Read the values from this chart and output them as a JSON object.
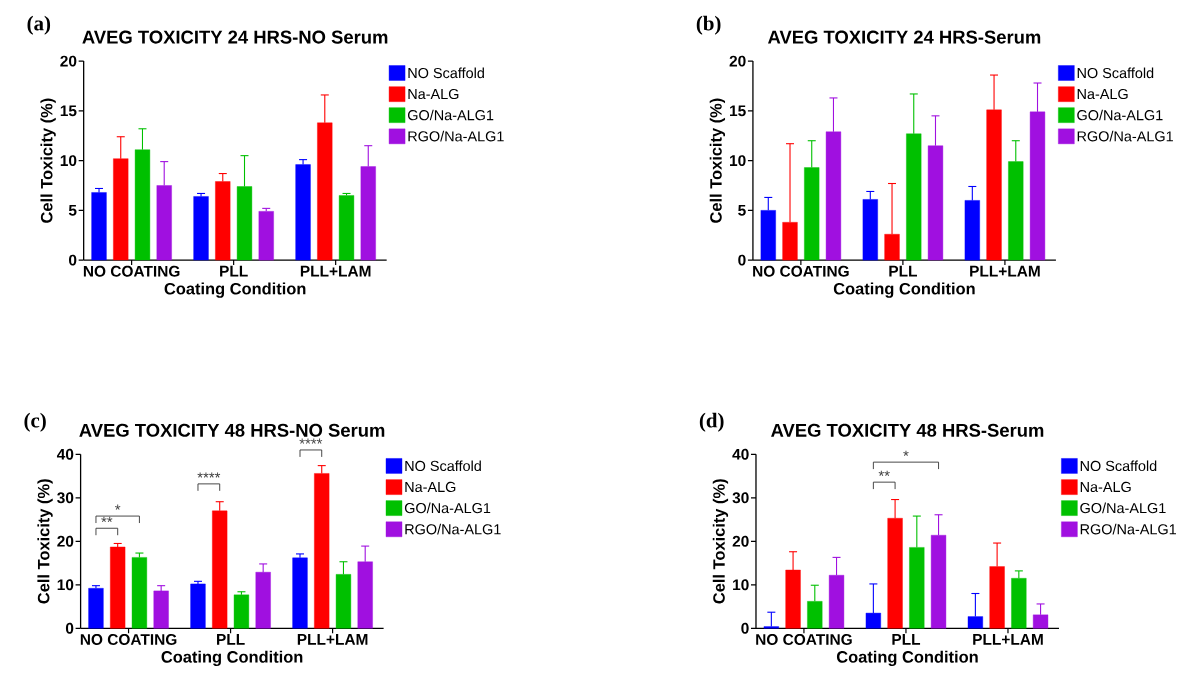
{
  "chart_data": [
    {
      "type": "bar",
      "title": "AVEG TOXICITY 24 HRS-NO Serum",
      "xlabel": "Coating Condition",
      "ylabel": "Cell Toxicity (%)",
      "categories": [
        "NO COATING",
        "PLL",
        "PLL+LAM"
      ],
      "series": [
        {
          "name": "NO Scaffold",
          "color": "#0000ff",
          "values": [
            6.8,
            6.4,
            9.6
          ],
          "errors": [
            [
              6.8,
              7.2
            ],
            [
              6.4,
              6.7
            ],
            [
              9.6,
              10.1
            ]
          ]
        },
        {
          "name": "Na-ALG",
          "color": "#ff0000",
          "values": [
            10.2,
            7.9,
            13.8
          ],
          "errors": [
            [
              10.2,
              12.4
            ],
            [
              7.9,
              8.7
            ],
            [
              13.8,
              16.6
            ]
          ]
        },
        {
          "name": "GO/Na-ALG1",
          "color": "#00c000",
          "values": [
            11.1,
            7.4,
            6.5
          ],
          "errors": [
            [
              11.1,
              13.2
            ],
            [
              7.4,
              10.5
            ],
            [
              6.5,
              6.7
            ]
          ]
        },
        {
          "name": "RGO/Na-ALG1",
          "color": "#a010e0",
          "values": [
            7.5,
            4.9,
            9.4
          ],
          "errors": [
            [
              7.5,
              9.9
            ],
            [
              4.9,
              5.2
            ],
            [
              9.4,
              11.5
            ]
          ]
        }
      ],
      "ylim": [
        0,
        20
      ],
      "yticks": [
        0,
        5,
        10,
        15,
        20
      ],
      "legend": "right",
      "annotations": [
        "(a)"
      ]
    },
    {
      "type": "bar",
      "title": "AVEG TOXICITY 24 HRS-Serum",
      "xlabel": "Coating Condition",
      "ylabel": "Cell Toxicity (%)",
      "categories": [
        "NO COATING",
        "PLL",
        "PLL+LAM"
      ],
      "series": [
        {
          "name": "NO Scaffold",
          "color": "#0000ff",
          "values": [
            5.0,
            6.1,
            6.0
          ],
          "errors": [
            [
              5.0,
              6.3
            ],
            [
              6.1,
              6.9
            ],
            [
              6.0,
              7.4
            ]
          ]
        },
        {
          "name": "Na-ALG",
          "color": "#ff0000",
          "values": [
            3.8,
            2.6,
            15.1
          ],
          "errors": [
            [
              3.8,
              11.7
            ],
            [
              2.6,
              7.7
            ],
            [
              15.1,
              18.6
            ]
          ]
        },
        {
          "name": "GO/Na-ALG1",
          "color": "#00c000",
          "values": [
            9.3,
            12.7,
            9.9
          ],
          "errors": [
            [
              9.3,
              12.0
            ],
            [
              12.7,
              16.7
            ],
            [
              9.9,
              12.0
            ]
          ]
        },
        {
          "name": "RGO/Na-ALG1",
          "color": "#a010e0",
          "values": [
            12.9,
            11.5,
            14.9
          ],
          "errors": [
            [
              12.9,
              16.3
            ],
            [
              11.5,
              14.5
            ],
            [
              14.9,
              17.8
            ]
          ]
        }
      ],
      "ylim": [
        0,
        20
      ],
      "yticks": [
        0,
        5,
        10,
        15,
        20
      ],
      "legend": "right",
      "annotations": [
        "(b)"
      ]
    },
    {
      "type": "bar",
      "title": "AVEG TOXICITY 48 HRS-NO Serum",
      "xlabel": "Coating Condition",
      "ylabel": "Cell Toxicity (%)",
      "categories": [
        "NO COATING",
        "PLL",
        "PLL+LAM"
      ],
      "series": [
        {
          "name": "NO Scaffold",
          "color": "#0000ff",
          "values": [
            9.2,
            10.2,
            16.2
          ],
          "errors": [
            [
              9.2,
              9.8
            ],
            [
              10.2,
              10.8
            ],
            [
              16.2,
              17.1
            ]
          ]
        },
        {
          "name": "Na-ALG",
          "color": "#ff0000",
          "values": [
            18.7,
            27.0,
            35.6
          ],
          "errors": [
            [
              18.7,
              19.5
            ],
            [
              27.0,
              29.1
            ],
            [
              35.6,
              37.4
            ]
          ]
        },
        {
          "name": "GO/Na-ALG1",
          "color": "#00c000",
          "values": [
            16.3,
            7.7,
            12.4
          ],
          "errors": [
            [
              16.3,
              17.3
            ],
            [
              7.7,
              8.4
            ],
            [
              12.4,
              15.3
            ]
          ]
        },
        {
          "name": "RGO/Na-ALG1",
          "color": "#a010e0",
          "values": [
            8.6,
            12.9,
            15.3
          ],
          "errors": [
            [
              8.6,
              9.8
            ],
            [
              12.9,
              14.8
            ],
            [
              15.3,
              18.9
            ]
          ]
        }
      ],
      "ylim": [
        0,
        40
      ],
      "yticks": [
        0,
        10,
        20,
        30,
        40
      ],
      "legend": "right",
      "annotations": [
        "(c)",
        "**",
        "*",
        "****",
        "****"
      ]
    },
    {
      "type": "bar",
      "title": "AVEG TOXICITY 48 HRS-Serum",
      "xlabel": "Coating Condition",
      "ylabel": "Cell Toxicity (%)",
      "categories": [
        "NO COATING",
        "PLL",
        "PLL+LAM"
      ],
      "series": [
        {
          "name": "NO Scaffold",
          "color": "#0000ff",
          "values": [
            0.4,
            3.5,
            2.7
          ],
          "errors": [
            [
              0.4,
              3.7
            ],
            [
              3.5,
              10.2
            ],
            [
              2.7,
              8.0
            ]
          ]
        },
        {
          "name": "Na-ALG",
          "color": "#ff0000",
          "values": [
            13.4,
            25.3,
            14.2
          ],
          "errors": [
            [
              13.4,
              17.6
            ],
            [
              25.3,
              29.6
            ],
            [
              14.2,
              19.6
            ]
          ]
        },
        {
          "name": "GO/Na-ALG1",
          "color": "#00c000",
          "values": [
            6.2,
            18.6,
            11.5
          ],
          "errors": [
            [
              6.2,
              9.9
            ],
            [
              18.6,
              25.8
            ],
            [
              11.5,
              13.2
            ]
          ]
        },
        {
          "name": "RGO/Na-ALG1",
          "color": "#a010e0",
          "values": [
            12.2,
            21.4,
            3.1
          ],
          "errors": [
            [
              12.2,
              16.3
            ],
            [
              21.4,
              26.1
            ],
            [
              3.1,
              5.6
            ]
          ]
        }
      ],
      "ylim": [
        0,
        40
      ],
      "yticks": [
        0,
        10,
        20,
        30,
        40
      ],
      "legend": "right",
      "annotations": [
        "(d)",
        "**",
        "*"
      ]
    }
  ]
}
